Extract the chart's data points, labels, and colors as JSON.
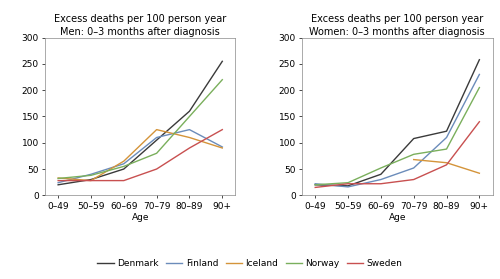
{
  "title_men": "Excess deaths per 100 person year\nMen: 0–3 months after diagnosis",
  "title_women": "Excess deaths per 100 person year\nWomen: 0–3 months after diagnosis",
  "xlabel": "Age",
  "age_labels": [
    "0–49",
    "50–59",
    "60–69",
    "70–79",
    "80–89",
    "90+"
  ],
  "ylim": [
    0,
    300
  ],
  "yticks": [
    0,
    50,
    100,
    150,
    200,
    250,
    300
  ],
  "countries": [
    "Denmark",
    "Finland",
    "Iceland",
    "Norway",
    "Sweden"
  ],
  "colors": {
    "Denmark": "#3a3a3a",
    "Finland": "#6b8cba",
    "Iceland": "#d4943a",
    "Norway": "#7aaf5c",
    "Sweden": "#c85050"
  },
  "men": {
    "Denmark": [
      20,
      30,
      50,
      105,
      160,
      255
    ],
    "Finland": [
      24,
      40,
      60,
      110,
      125,
      92
    ],
    "Iceland": [
      33,
      28,
      65,
      125,
      110,
      90
    ],
    "Norway": [
      32,
      38,
      55,
      80,
      150,
      220
    ],
    "Sweden": [
      28,
      28,
      28,
      50,
      90,
      125
    ]
  },
  "women": {
    "Denmark": [
      20,
      18,
      40,
      108,
      122,
      258
    ],
    "Finland": [
      22,
      16,
      30,
      52,
      110,
      230
    ],
    "Iceland": [
      16,
      null,
      null,
      68,
      62,
      42
    ],
    "Norway": [
      20,
      24,
      52,
      78,
      88,
      205
    ],
    "Sweden": [
      15,
      22,
      22,
      30,
      58,
      140
    ]
  },
  "title_fontsize": 7.0,
  "tick_fontsize": 6.5,
  "legend_fontsize": 6.5,
  "linewidth": 1.0,
  "facecolor": "#f0f0f0"
}
